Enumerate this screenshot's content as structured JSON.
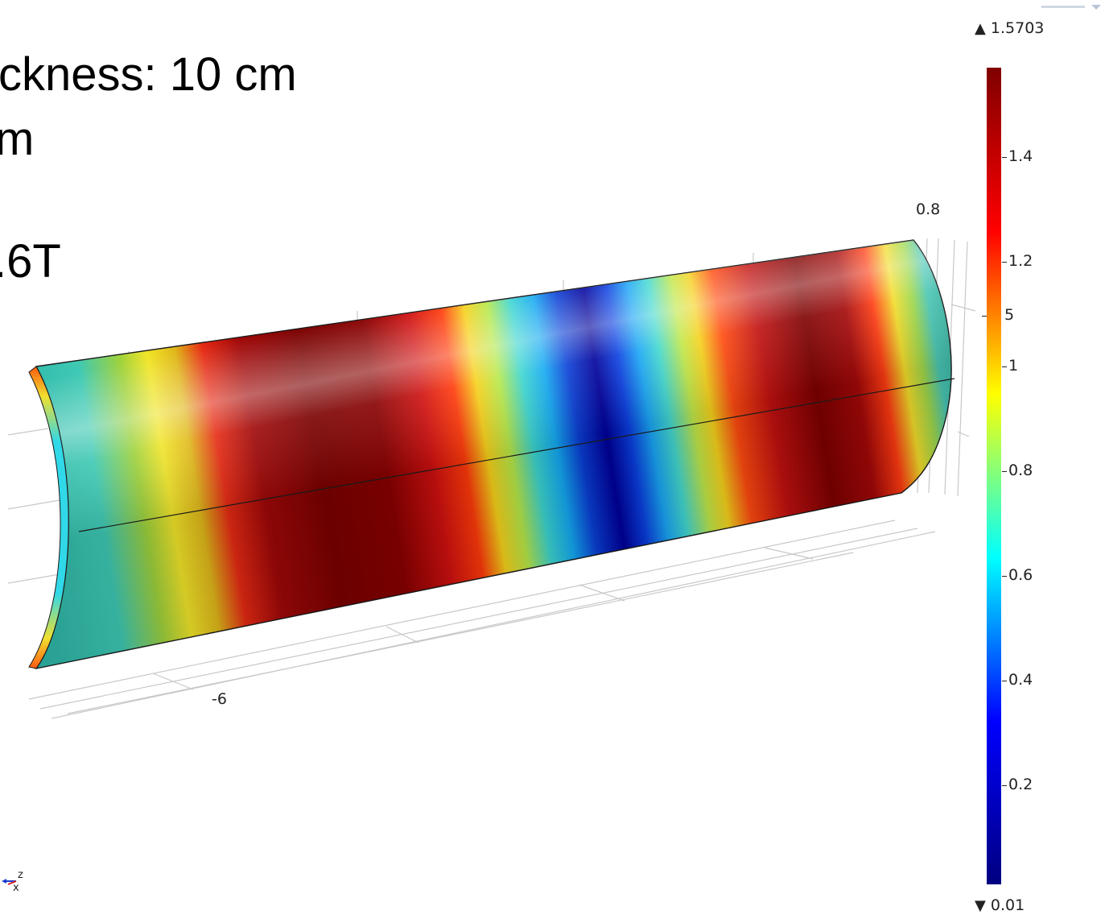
{
  "overlay": {
    "line1": "ckness: 10 cm",
    "line2": "m",
    "line3": ".6T"
  },
  "axes": {
    "top_label": "0.8",
    "bottom_label": "-6"
  },
  "colorbar": {
    "max_label": "1.5703",
    "min_label": "0.01",
    "max": 1.5703,
    "min": 0.01,
    "ticks": [
      "1.4",
      "1.2",
      "1",
      "0.8",
      "0.6",
      "0.4",
      "0.2"
    ],
    "extra_label": "5",
    "colormap": [
      "#000080",
      "#0000ff",
      "#00ffff",
      "#ffff00",
      "#ff0000",
      "#800000"
    ]
  },
  "triad": {
    "z": "z",
    "x": "x"
  }
}
